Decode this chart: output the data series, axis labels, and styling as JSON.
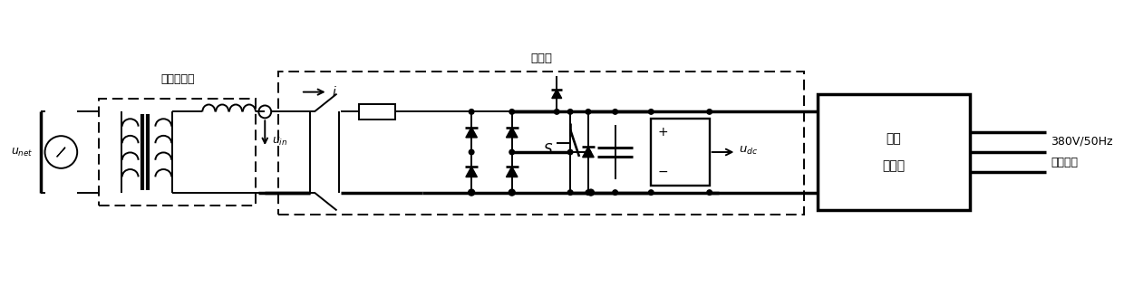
{
  "fig_width": 12.4,
  "fig_height": 3.38,
  "dpi": 100,
  "bg_color": "#ffffff",
  "lc": "#000000",
  "label_transformer": "牵引变压器",
  "label_rectifier": "整流器",
  "label_inverter_l1": "三相",
  "label_inverter_l2": "逆变器",
  "label_out_l1": "380V/50Hz",
  "label_out_l2": "交流输出",
  "xmax": 124.0,
  "ymax": 33.8,
  "ytop": 21.5,
  "ybot": 12.5,
  "nlw": 1.4,
  "tlw": 2.5
}
